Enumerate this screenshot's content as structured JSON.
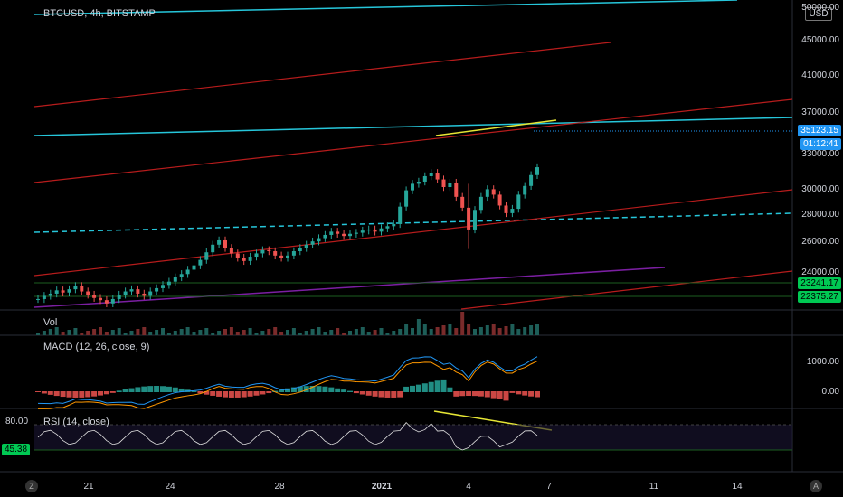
{
  "chart_title": "BTCUSD, 4h, BITSTAMP",
  "currency_button": "USD",
  "price_axis": [
    "50000.00",
    "45000.00",
    "41000.00",
    "37000.00",
    "33000.00",
    "30000.00",
    "28000.00",
    "26000.00",
    "24000.00"
  ],
  "last_price": "35123.15",
  "countdown": "01:12:41",
  "level_tags": [
    "23241.17",
    "22375.27"
  ],
  "vol_label": "Vol",
  "macd_label": "MACD (12, 26, close, 9)",
  "macd_axis": [
    "1000.00",
    "0.00"
  ],
  "rsi_label": "RSI (14, close)",
  "rsi_axis": [
    "80.00"
  ],
  "rsi_tag": "45.38",
  "time_axis": [
    "21",
    "24",
    "28",
    "2021",
    "4",
    "7",
    "11",
    "14"
  ],
  "corner_left": "Z",
  "corner_right": "A",
  "colors": {
    "up": "#26a69a",
    "down": "#ef5350",
    "cyan": "#26c6da",
    "red": "#b71c1c",
    "yellow": "#e6e635",
    "purple": "#7b1fa2",
    "green": "#1b5e20",
    "last_tag": "#2196f3",
    "level_tag": "#00c853"
  },
  "chart_data": {
    "type": "candlestick",
    "price_series": [
      23000,
      23300,
      23500,
      23800,
      23600,
      23900,
      24200,
      23700,
      23400,
      23100,
      22900,
      22600,
      23000,
      23400,
      23700,
      23900,
      23500,
      23300,
      23700,
      24000,
      24300,
      24600,
      25000,
      25300,
      25700,
      26100,
      26600,
      27300,
      28000,
      28400,
      27700,
      27200,
      26800,
      26500,
      26900,
      27200,
      27500,
      27400,
      27000,
      26800,
      27000,
      27400,
      27700,
      28000,
      28300,
      28600,
      28900,
      29200,
      29000,
      28800,
      29000,
      29100,
      29300,
      29400,
      29200,
      29500,
      29700,
      29900,
      31500,
      33000,
      33600,
      33800,
      34300,
      34600,
      34000,
      33300,
      33700,
      32400,
      31400,
      29400,
      31200,
      32400,
      33100,
      32600,
      31600,
      30900,
      31300,
      32600,
      33400,
      34400,
      35123
    ],
    "macd_axis_values": [
      1000,
      0
    ],
    "rsi_axis_values": [
      80
    ],
    "price_ylim": [
      22000,
      50500
    ]
  }
}
